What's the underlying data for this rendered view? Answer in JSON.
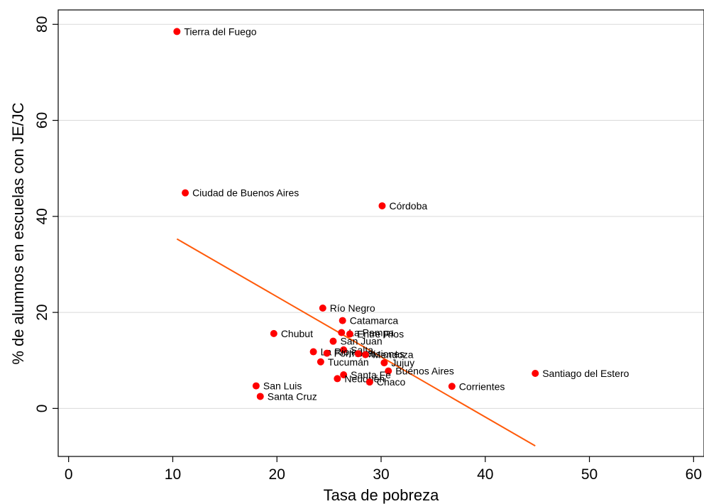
{
  "chart_data": {
    "type": "scatter",
    "xlabel": "Tasa de pobreza",
    "ylabel": "% de alumnos en escuelas con JE/JC",
    "xlim": [
      -1,
      61
    ],
    "ylim": [
      -10,
      83
    ],
    "xticks": [
      0,
      10,
      20,
      30,
      40,
      50,
      60
    ],
    "yticks": [
      0,
      20,
      40,
      60,
      80
    ],
    "grid": "horizontal",
    "colors": {
      "points": "#ff0000",
      "fit_line": "#ff5a0a"
    },
    "points": [
      {
        "label": "Tierra del Fuego",
        "x": 10.4,
        "y": 78.5
      },
      {
        "label": "Ciudad de Buenos Aires",
        "x": 11.2,
        "y": 44.9
      },
      {
        "label": "Córdoba",
        "x": 30.1,
        "y": 42.2
      },
      {
        "label": "Río Negro",
        "x": 24.4,
        "y": 20.9
      },
      {
        "label": "Catamarca",
        "x": 26.3,
        "y": 18.3
      },
      {
        "label": "Chubut",
        "x": 19.7,
        "y": 15.6
      },
      {
        "label": "La Pampa",
        "x": 26.2,
        "y": 15.8
      },
      {
        "label": "Entre Ríos",
        "x": 27.0,
        "y": 15.5
      },
      {
        "label": "San Juan",
        "x": 25.4,
        "y": 14.0
      },
      {
        "label": "Salta",
        "x": 26.4,
        "y": 12.2
      },
      {
        "label": "La Rioja",
        "x": 23.5,
        "y": 11.8
      },
      {
        "label": "Formosa",
        "x": 24.8,
        "y": 11.5
      },
      {
        "label": "Misiones",
        "x": 27.8,
        "y": 11.4
      },
      {
        "label": "Mendoza",
        "x": 28.5,
        "y": 11.2
      },
      {
        "label": "Tucumán",
        "x": 24.2,
        "y": 9.7
      },
      {
        "label": "Jujuy",
        "x": 30.3,
        "y": 9.5
      },
      {
        "label": "Buenos Aires",
        "x": 30.7,
        "y": 7.8
      },
      {
        "label": "Santa Fe",
        "x": 26.4,
        "y": 7.0
      },
      {
        "label": "Neuquén",
        "x": 25.8,
        "y": 6.2
      },
      {
        "label": "Chaco",
        "x": 28.9,
        "y": 5.5
      },
      {
        "label": "Corrientes",
        "x": 36.8,
        "y": 4.6
      },
      {
        "label": "Santiago del Estero",
        "x": 44.8,
        "y": 7.3
      },
      {
        "label": "San Luis",
        "x": 18.0,
        "y": 4.7
      },
      {
        "label": "Santa Cruz",
        "x": 18.4,
        "y": 2.5
      }
    ],
    "fit_line": {
      "x": [
        10.4,
        44.8
      ],
      "y": [
        35.3,
        -7.8
      ]
    }
  }
}
